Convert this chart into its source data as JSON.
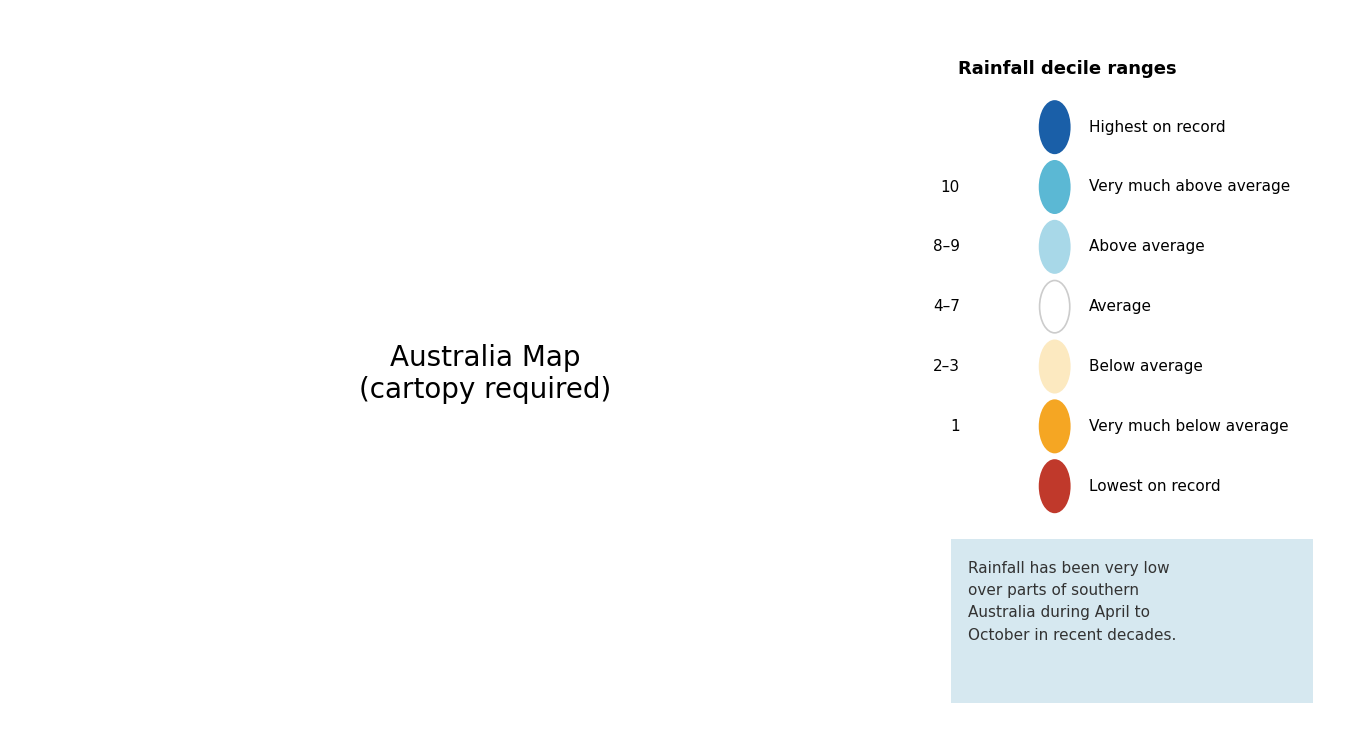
{
  "legend_title": "Rainfall decile ranges",
  "legend_items": [
    {
      "label": "Highest on record",
      "color": "#1a5fa8",
      "decile": ""
    },
    {
      "label": "Very much above average",
      "color": "#5bb8d4",
      "decile": "10"
    },
    {
      "label": "Above average",
      "color": "#a8d8e8",
      "decile": "8–9"
    },
    {
      "label": "Average",
      "color": "#ffffff",
      "decile": "4–7"
    },
    {
      "label": "Below average",
      "color": "#fce9c0",
      "decile": "2–3"
    },
    {
      "label": "Very much below average",
      "color": "#f5a623",
      "decile": "1"
    },
    {
      "label": "Lowest on record",
      "color": "#c0392b",
      "decile": ""
    }
  ],
  "annotation_text": "Rainfall has been very low\nover parts of southern\nAustralia during April to\nOctober in recent decades.",
  "annotation_bg": "#d6e8f0",
  "background_color": "#ffffff",
  "map_outline_color": "#b0b0b0",
  "state_border_color": "#888888",
  "fig_width": 13.48,
  "fig_height": 7.48
}
